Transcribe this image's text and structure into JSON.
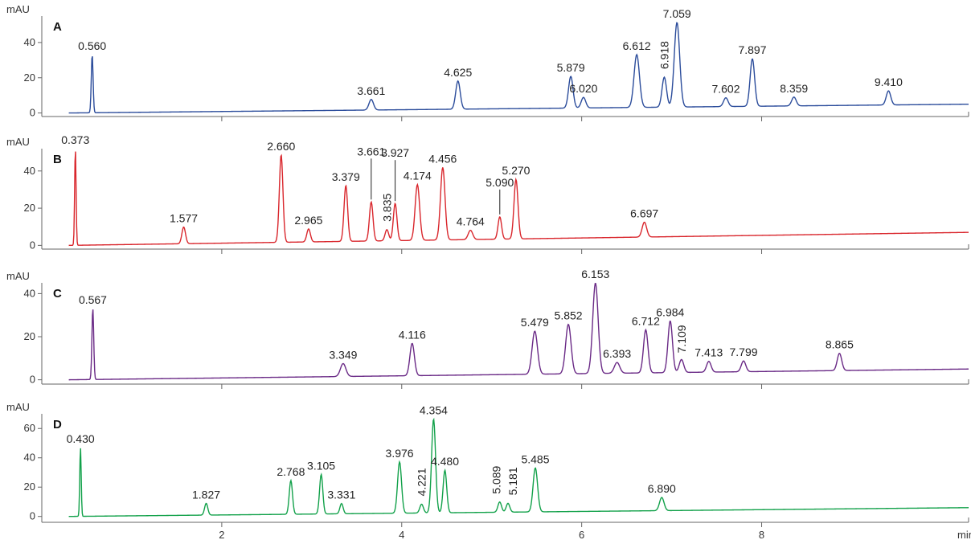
{
  "chart_data": {
    "type": "line",
    "xlabel": "min",
    "ylabel": "mAU",
    "xlim": [
      0,
      10.3
    ],
    "x_ticks": [
      2,
      4,
      6,
      8
    ],
    "x_tick_labels": [
      "2",
      "4",
      "6",
      "8"
    ],
    "grid": false,
    "panels": [
      {
        "id": "A",
        "label": "A",
        "ylabel": "mAU",
        "color": "#2b4c9b",
        "ylim": [
          -2,
          55
        ],
        "y_ticks": [
          0,
          20,
          40
        ],
        "y_tick_labels": [
          "0",
          "20",
          "40"
        ],
        "baseline": {
          "start": 0,
          "end": 5
        },
        "dip": 0.24,
        "peaks": [
          {
            "rt": 0.56,
            "label": "0.560",
            "height": 33,
            "width": 0.01
          },
          {
            "rt": 3.661,
            "label": "3.661",
            "height": 6,
            "width": 0.025
          },
          {
            "rt": 4.625,
            "label": "4.625",
            "height": 16,
            "width": 0.025
          },
          {
            "rt": 5.879,
            "label": "5.879",
            "height": 18,
            "width": 0.025
          },
          {
            "rt": 6.02,
            "label": "6.020",
            "height": 6,
            "width": 0.025
          },
          {
            "rt": 6.612,
            "label": "6.612",
            "height": 30,
            "width": 0.03
          },
          {
            "rt": 6.918,
            "label": "6.918",
            "height": 17,
            "width": 0.025
          },
          {
            "rt": 7.059,
            "label": "7.059",
            "height": 48,
            "width": 0.03
          },
          {
            "rt": 7.602,
            "label": "7.602",
            "height": 5,
            "width": 0.025
          },
          {
            "rt": 7.897,
            "label": "7.897",
            "height": 27,
            "width": 0.025
          },
          {
            "rt": 8.359,
            "label": "8.359",
            "height": 5,
            "width": 0.025
          },
          {
            "rt": 9.41,
            "label": "9.410",
            "height": 8,
            "width": 0.025
          }
        ]
      },
      {
        "id": "B",
        "label": "B",
        "ylabel": "mAU",
        "color": "#d9262c",
        "ylim": [
          -2,
          52
        ],
        "y_ticks": [
          0,
          20,
          40
        ],
        "y_tick_labels": [
          "0",
          "20",
          "40"
        ],
        "baseline": {
          "start": 0,
          "end": 7
        },
        "dip": 0.21,
        "peaks": [
          {
            "rt": 0.373,
            "label": "0.373",
            "height": 52,
            "width": 0.008
          },
          {
            "rt": 1.577,
            "label": "1.577",
            "height": 9,
            "width": 0.02
          },
          {
            "rt": 2.66,
            "label": "2.660",
            "height": 47,
            "width": 0.02
          },
          {
            "rt": 2.965,
            "label": "2.965",
            "height": 7,
            "width": 0.02
          },
          {
            "rt": 3.379,
            "label": "3.379",
            "height": 30,
            "width": 0.02
          },
          {
            "rt": 3.661,
            "label": "3.661",
            "height": 21,
            "width": 0.02
          },
          {
            "rt": 3.835,
            "label": "3.835",
            "height": 6,
            "width": 0.02
          },
          {
            "rt": 3.927,
            "label": "3.927",
            "height": 20,
            "width": 0.02
          },
          {
            "rt": 4.174,
            "label": "4.174",
            "height": 30,
            "width": 0.025
          },
          {
            "rt": 4.456,
            "label": "4.456",
            "height": 39,
            "width": 0.025
          },
          {
            "rt": 4.764,
            "label": "4.764",
            "height": 5,
            "width": 0.025
          },
          {
            "rt": 5.09,
            "label": "5.090",
            "height": 12,
            "width": 0.02
          },
          {
            "rt": 5.27,
            "label": "5.270",
            "height": 32,
            "width": 0.022
          },
          {
            "rt": 6.697,
            "label": "6.697",
            "height": 8,
            "width": 0.025
          }
        ]
      },
      {
        "id": "C",
        "label": "C",
        "ylabel": "mAU",
        "color": "#6a2a86",
        "ylim": [
          -2,
          45
        ],
        "y_ticks": [
          0,
          20,
          40
        ],
        "y_tick_labels": [
          "0",
          "20",
          "40"
        ],
        "baseline": {
          "start": 0,
          "end": 5
        },
        "dip": 0.24,
        "peaks": [
          {
            "rt": 0.567,
            "label": "0.567",
            "height": 33,
            "width": 0.01
          },
          {
            "rt": 3.349,
            "label": "3.349",
            "height": 6,
            "width": 0.03
          },
          {
            "rt": 4.116,
            "label": "4.116",
            "height": 15,
            "width": 0.025
          },
          {
            "rt": 5.479,
            "label": "5.479",
            "height": 20,
            "width": 0.03
          },
          {
            "rt": 5.852,
            "label": "5.852",
            "height": 23,
            "width": 0.03
          },
          {
            "rt": 6.153,
            "label": "6.153",
            "height": 42,
            "width": 0.03
          },
          {
            "rt": 6.393,
            "label": "6.393",
            "height": 5,
            "width": 0.03
          },
          {
            "rt": 6.712,
            "label": "6.712",
            "height": 20,
            "width": 0.025
          },
          {
            "rt": 6.984,
            "label": "6.984",
            "height": 24,
            "width": 0.025
          },
          {
            "rt": 7.109,
            "label": "7.109",
            "height": 6,
            "width": 0.025
          },
          {
            "rt": 7.413,
            "label": "7.413",
            "height": 5,
            "width": 0.025
          },
          {
            "rt": 7.799,
            "label": "7.799",
            "height": 5,
            "width": 0.025
          },
          {
            "rt": 8.865,
            "label": "8.865",
            "height": 8,
            "width": 0.025
          }
        ]
      },
      {
        "id": "D",
        "label": "D",
        "ylabel": "mAU",
        "color": "#12a14a",
        "ylim": [
          -4,
          70
        ],
        "y_ticks": [
          0,
          20,
          40,
          60
        ],
        "y_tick_labels": [
          "0",
          "20",
          "40",
          "60"
        ],
        "baseline": {
          "start": 0,
          "end": 6
        },
        "dip": 0.21,
        "peaks": [
          {
            "rt": 0.43,
            "label": "0.430",
            "height": 47,
            "width": 0.008
          },
          {
            "rt": 1.827,
            "label": "1.827",
            "height": 8,
            "width": 0.018
          },
          {
            "rt": 2.768,
            "label": "2.768",
            "height": 23,
            "width": 0.018
          },
          {
            "rt": 3.105,
            "label": "3.105",
            "height": 27,
            "width": 0.018
          },
          {
            "rt": 3.331,
            "label": "3.331",
            "height": 7,
            "width": 0.018
          },
          {
            "rt": 3.976,
            "label": "3.976",
            "height": 35,
            "width": 0.022
          },
          {
            "rt": 4.221,
            "label": "4.221",
            "height": 6,
            "width": 0.02
          },
          {
            "rt": 4.354,
            "label": "4.354",
            "height": 64,
            "width": 0.022
          },
          {
            "rt": 4.48,
            "label": "4.480",
            "height": 29,
            "width": 0.02
          },
          {
            "rt": 5.089,
            "label": "5.089",
            "height": 7,
            "width": 0.02
          },
          {
            "rt": 5.181,
            "label": "5.181",
            "height": 6,
            "width": 0.02
          },
          {
            "rt": 5.485,
            "label": "5.485",
            "height": 30,
            "width": 0.025
          },
          {
            "rt": 6.89,
            "label": "6.890",
            "height": 9,
            "width": 0.025
          }
        ]
      }
    ]
  }
}
